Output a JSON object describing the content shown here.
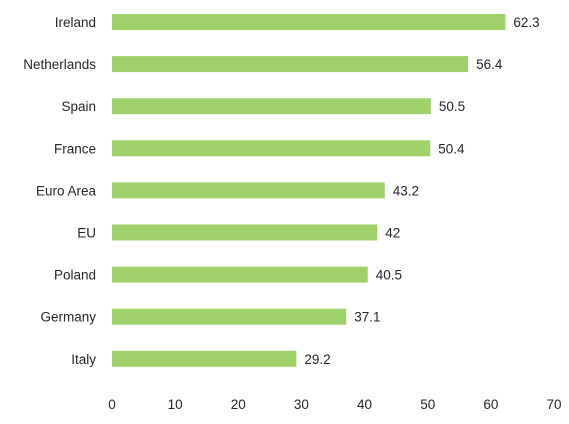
{
  "chart_data": {
    "type": "bar",
    "orientation": "horizontal",
    "title": "",
    "xlabel": "",
    "ylabel": "",
    "categories": [
      "Ireland",
      "Netherlands",
      "Spain",
      "France",
      "Euro Area",
      "EU",
      "Poland",
      "Germany",
      "Italy"
    ],
    "values": [
      62.3,
      56.4,
      50.5,
      50.4,
      43.2,
      42,
      40.5,
      37.1,
      29.2
    ],
    "value_labels": [
      "62.3",
      "56.4",
      "50.5",
      "50.4",
      "43.2",
      "42",
      "40.5",
      "37.1",
      "29.2"
    ],
    "xlim": [
      0,
      70
    ],
    "ticks": [
      0,
      10,
      20,
      30,
      40,
      50,
      60,
      70
    ],
    "tick_labels": [
      "0",
      "10",
      "20",
      "30",
      "40",
      "50",
      "60",
      "70"
    ],
    "grid": false,
    "legend": "none",
    "bar_color": "#9fd16b"
  }
}
